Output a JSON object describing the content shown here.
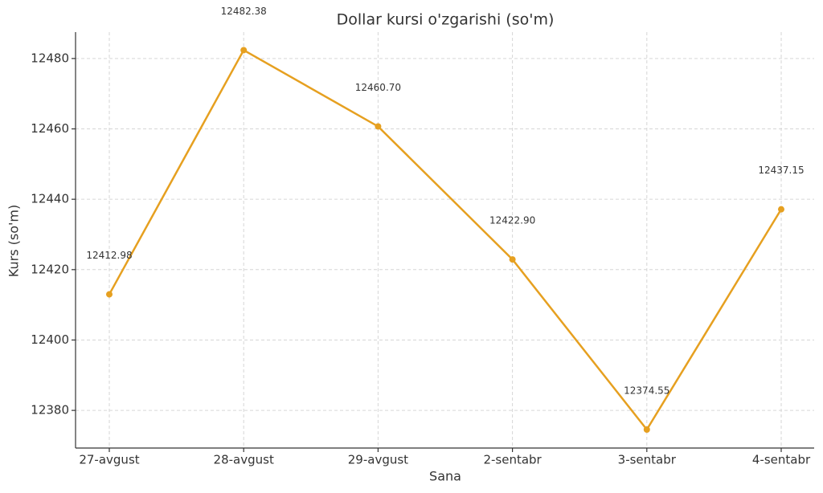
{
  "chart_data": {
    "type": "line",
    "title": "Dollar kursi o'zgarishi (so'm)",
    "x_label": "Sana",
    "y_label": "Kurs (so'm)",
    "categories": [
      "27-avgust",
      "28-avgust",
      "29-avgust",
      "2-sentabr",
      "3-sentabr",
      "4-sentabr"
    ],
    "values": [
      12412.98,
      12482.38,
      12460.7,
      12422.9,
      12374.55,
      12437.15
    ],
    "value_labels": [
      "12412.98",
      "12482.38",
      "12460.70",
      "12422.90",
      "12374.55",
      "12437.15"
    ],
    "color": "#e6a020",
    "ylim": [
      12369.3,
      12487.5
    ],
    "yticks": [
      12380,
      12400,
      12420,
      12440,
      12460,
      12480
    ],
    "grid": true
  }
}
